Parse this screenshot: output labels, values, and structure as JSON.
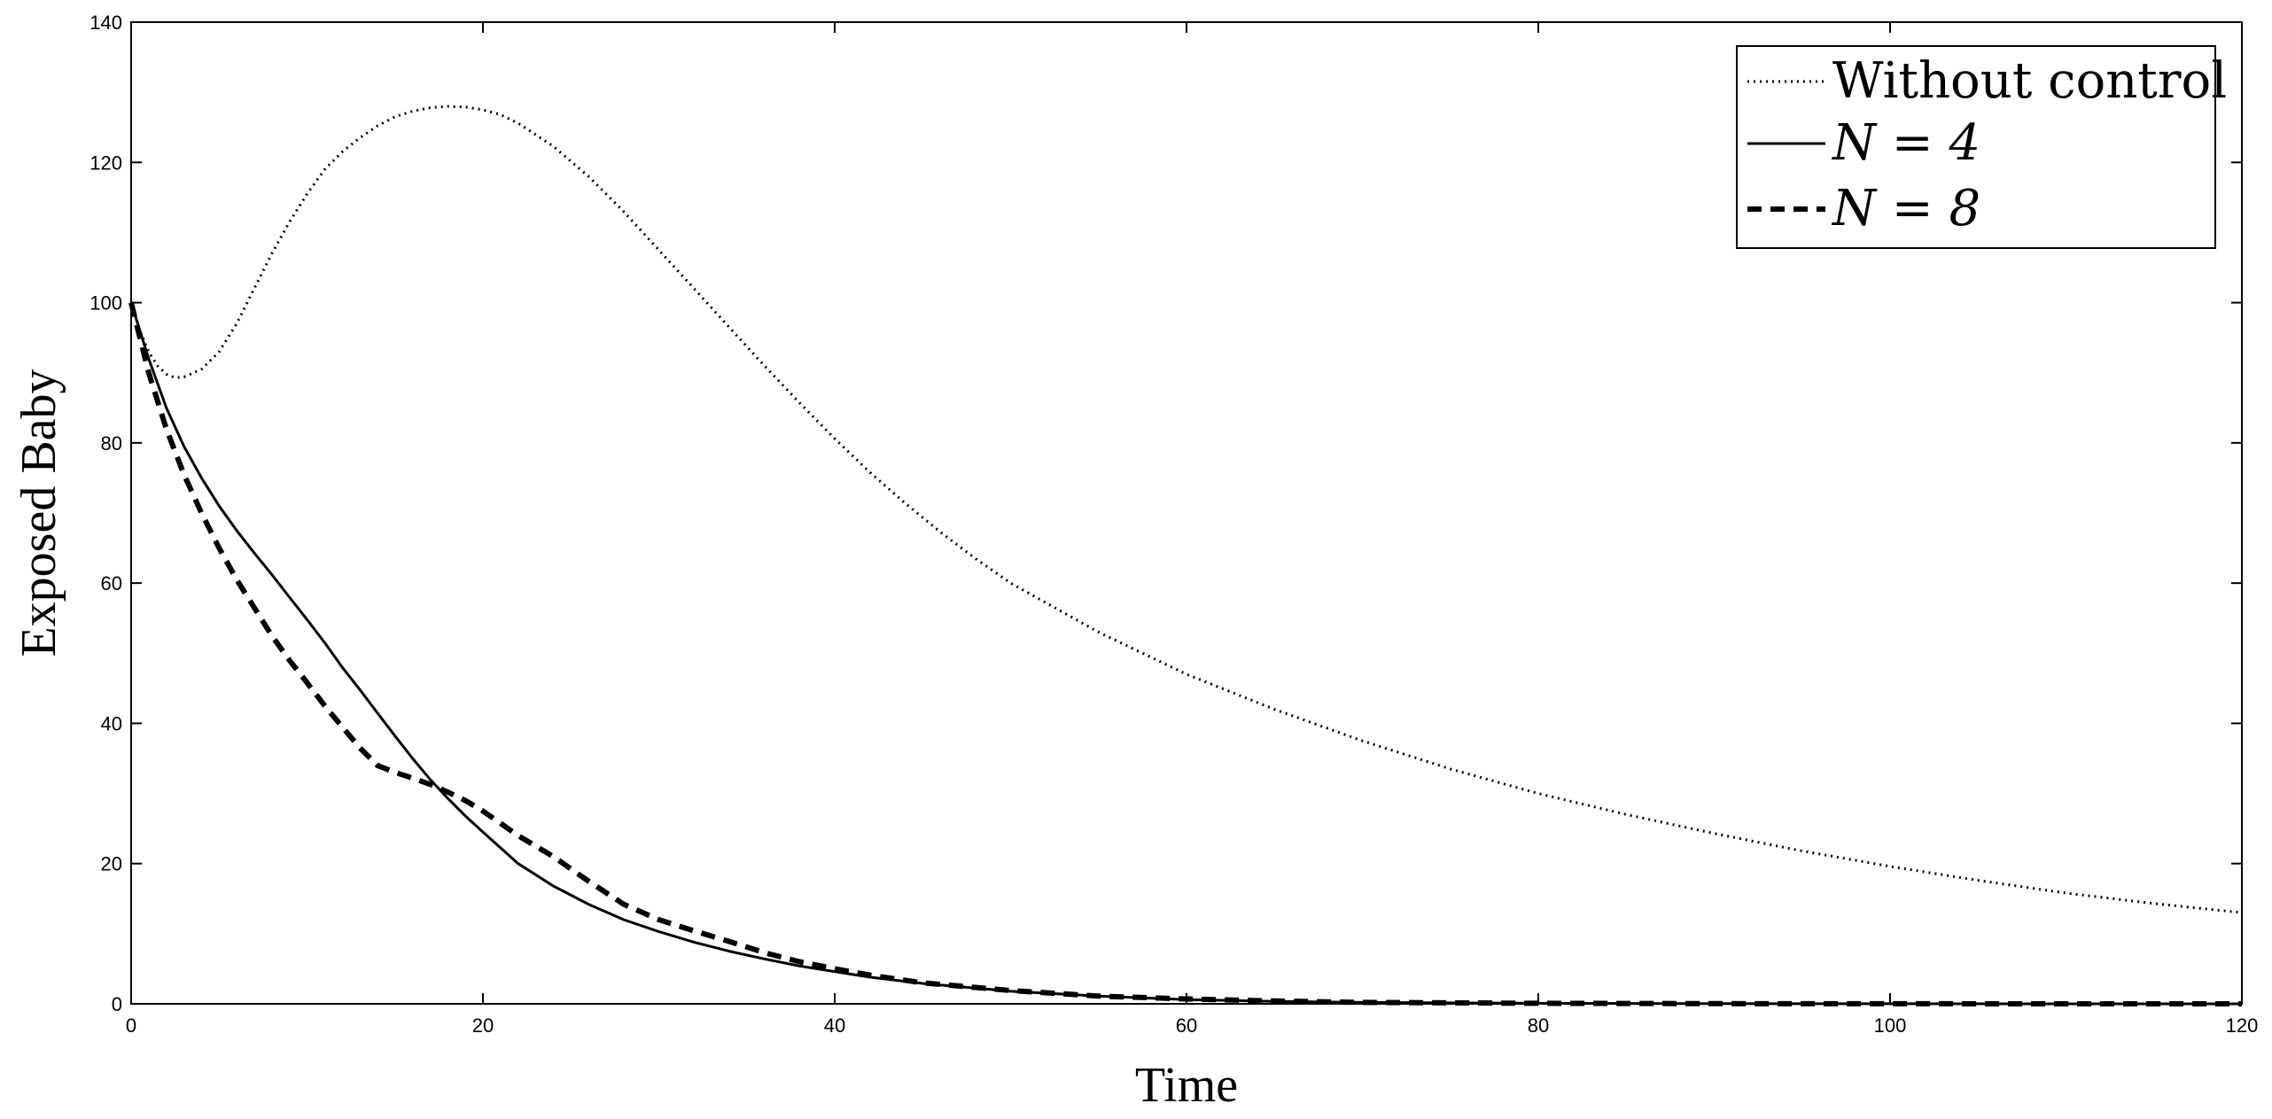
{
  "chart_data": {
    "type": "line",
    "title": "",
    "xlabel": "Time",
    "ylabel": "Exposed Baby",
    "xlim": [
      0,
      120
    ],
    "ylim": [
      0,
      140
    ],
    "xticks": [
      0,
      20,
      40,
      60,
      80,
      100,
      120
    ],
    "yticks": [
      0,
      20,
      40,
      60,
      80,
      100,
      120,
      140
    ],
    "xtick_labels": [
      "0",
      "20",
      "40",
      "60",
      "80",
      "100",
      "120"
    ],
    "ytick_labels": [
      "0",
      "20",
      "40",
      "60",
      "80",
      "100",
      "120",
      "140"
    ],
    "grid": false,
    "legend_position": "top-right",
    "series": [
      {
        "name": "Without control",
        "style": "dotted",
        "color": "#000000",
        "points": [
          [
            0,
            100
          ],
          [
            0.5,
            96
          ],
          [
            1,
            93
          ],
          [
            1.5,
            91
          ],
          [
            2,
            89.8
          ],
          [
            2.5,
            89.3
          ],
          [
            3,
            89.4
          ],
          [
            4,
            90.5
          ],
          [
            5,
            93
          ],
          [
            6,
            97
          ],
          [
            7,
            102
          ],
          [
            8,
            107
          ],
          [
            9,
            111.5
          ],
          [
            10,
            115.5
          ],
          [
            11,
            119
          ],
          [
            12,
            121.5
          ],
          [
            13,
            123.5
          ],
          [
            14,
            125.2
          ],
          [
            15,
            126.5
          ],
          [
            16,
            127.3
          ],
          [
            17,
            127.8
          ],
          [
            18,
            128
          ],
          [
            19,
            127.9
          ],
          [
            20,
            127.5
          ],
          [
            21,
            126.8
          ],
          [
            22,
            125.6
          ],
          [
            24,
            122.3
          ],
          [
            26,
            118
          ],
          [
            28,
            113
          ],
          [
            30,
            107.5
          ],
          [
            32,
            102
          ],
          [
            34,
            96.5
          ],
          [
            36,
            91
          ],
          [
            38,
            85.7
          ],
          [
            40,
            80.6
          ],
          [
            42,
            75.8
          ],
          [
            44,
            71.4
          ],
          [
            46,
            67.3
          ],
          [
            48,
            63.5
          ],
          [
            50,
            60
          ],
          [
            55,
            53
          ],
          [
            60,
            47
          ],
          [
            65,
            42
          ],
          [
            70,
            37.5
          ],
          [
            75,
            33.5
          ],
          [
            80,
            30
          ],
          [
            85,
            27
          ],
          [
            90,
            24.3
          ],
          [
            95,
            21.8
          ],
          [
            100,
            19.6
          ],
          [
            105,
            17.6
          ],
          [
            110,
            15.8
          ],
          [
            115,
            14.3
          ],
          [
            120,
            13
          ]
        ]
      },
      {
        "name": "N = 4",
        "style": "solid",
        "color": "#000000",
        "points": [
          [
            0,
            100
          ],
          [
            1,
            92
          ],
          [
            2,
            85
          ],
          [
            3,
            79.5
          ],
          [
            4,
            75
          ],
          [
            5,
            71
          ],
          [
            6,
            67.5
          ],
          [
            7,
            64.3
          ],
          [
            8,
            61.2
          ],
          [
            9,
            58
          ],
          [
            10,
            54.8
          ],
          [
            11,
            51.5
          ],
          [
            12,
            48
          ],
          [
            13,
            44.8
          ],
          [
            14,
            41.5
          ],
          [
            15,
            38.2
          ],
          [
            16,
            35
          ],
          [
            17,
            32
          ],
          [
            18,
            29.3
          ],
          [
            19,
            26.8
          ],
          [
            20,
            24.5
          ],
          [
            22,
            20
          ],
          [
            24,
            16.8
          ],
          [
            26,
            14.2
          ],
          [
            28,
            12
          ],
          [
            30,
            10.3
          ],
          [
            32,
            8.8
          ],
          [
            34,
            7.5
          ],
          [
            36,
            6.4
          ],
          [
            38,
            5.4
          ],
          [
            40,
            4.6
          ],
          [
            42,
            3.8
          ],
          [
            45,
            2.9
          ],
          [
            50,
            1.8
          ],
          [
            55,
            1.1
          ],
          [
            60,
            0.6
          ],
          [
            65,
            0.35
          ],
          [
            70,
            0.2
          ],
          [
            80,
            0.08
          ],
          [
            90,
            0.03
          ],
          [
            100,
            0.01
          ],
          [
            110,
            0
          ],
          [
            120,
            0
          ]
        ]
      },
      {
        "name": "N = 8",
        "style": "dashed",
        "color": "#000000",
        "points": [
          [
            0,
            100
          ],
          [
            1,
            90
          ],
          [
            2,
            82
          ],
          [
            3,
            75.5
          ],
          [
            4,
            70
          ],
          [
            5,
            65
          ],
          [
            6,
            60.5
          ],
          [
            7,
            56.5
          ],
          [
            8,
            52.5
          ],
          [
            9,
            49
          ],
          [
            10,
            45.8
          ],
          [
            11,
            42.5
          ],
          [
            12,
            39.5
          ],
          [
            13,
            36.5
          ],
          [
            14,
            34
          ],
          [
            15,
            33
          ],
          [
            16,
            32.2
          ],
          [
            17,
            31.3
          ],
          [
            18,
            30.2
          ],
          [
            19,
            29
          ],
          [
            20,
            27.5
          ],
          [
            22,
            24
          ],
          [
            24,
            21
          ],
          [
            26,
            17.5
          ],
          [
            28,
            14.2
          ],
          [
            30,
            12
          ],
          [
            32,
            10.4
          ],
          [
            34,
            8.9
          ],
          [
            36,
            7.3
          ],
          [
            38,
            6
          ],
          [
            40,
            5
          ],
          [
            42,
            4.1
          ],
          [
            45,
            3
          ],
          [
            50,
            1.9
          ],
          [
            55,
            1.1
          ],
          [
            60,
            0.7
          ],
          [
            65,
            0.4
          ],
          [
            70,
            0.2
          ],
          [
            80,
            0.08
          ],
          [
            90,
            0.03
          ],
          [
            100,
            0.01
          ],
          [
            110,
            0
          ],
          [
            120,
            0
          ]
        ]
      }
    ]
  }
}
